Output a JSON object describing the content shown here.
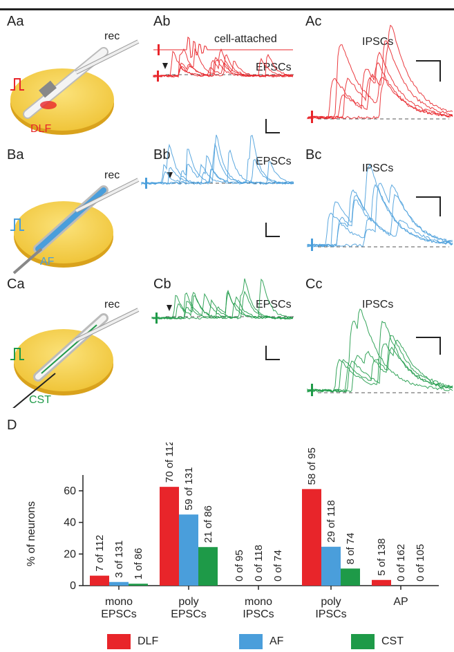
{
  "labels": {
    "Aa": "Aa",
    "Ab": "Ab",
    "Ac": "Ac",
    "Ba": "Ba",
    "Bb": "Bb",
    "Bc": "Bc",
    "Ca": "Ca",
    "Cb": "Cb",
    "Cc": "Cc",
    "D": "D"
  },
  "trace_titles": {
    "cell_attached": "cell-attached",
    "epscs": "EPSCs",
    "ipscs": "IPSCs"
  },
  "rec_label": "rec",
  "stim": {
    "A": {
      "name": "DLF",
      "color": "#e8252a"
    },
    "B": {
      "name": "AF",
      "color": "#4a9edb"
    },
    "C": {
      "name": "CST",
      "color": "#1e9a48"
    }
  },
  "chart_data": {
    "type": "bar",
    "ylabel": "% of neurons",
    "ylim": [
      0,
      70
    ],
    "yticks": [
      "0",
      "20",
      "40",
      "60"
    ],
    "categories": [
      "mono\nEPSCs",
      "poly\nEPSCs",
      "mono\nIPSCs",
      "poly\nIPSCs",
      "AP"
    ],
    "series": [
      {
        "name": "DLF",
        "color": "#e8252a",
        "values": [
          6.3,
          62.5,
          0,
          61.1,
          3.6
        ],
        "labels": [
          "7 of 112",
          "70 of 112",
          "0 of 95",
          "58 of 95",
          "5 of 138"
        ]
      },
      {
        "name": "AF",
        "color": "#4a9edb",
        "values": [
          2.3,
          45.0,
          0,
          24.6,
          0
        ],
        "labels": [
          "3 of 131",
          "59 of 131",
          "0 of 118",
          "29 of 118",
          "0 of 162"
        ]
      },
      {
        "name": "CST",
        "color": "#1e9a48",
        "values": [
          1.2,
          24.4,
          0,
          10.8,
          0
        ],
        "labels": [
          "1 of 86",
          "21 of 86",
          "0 of 74",
          "8 of 74",
          "0 of 105"
        ]
      }
    ]
  }
}
